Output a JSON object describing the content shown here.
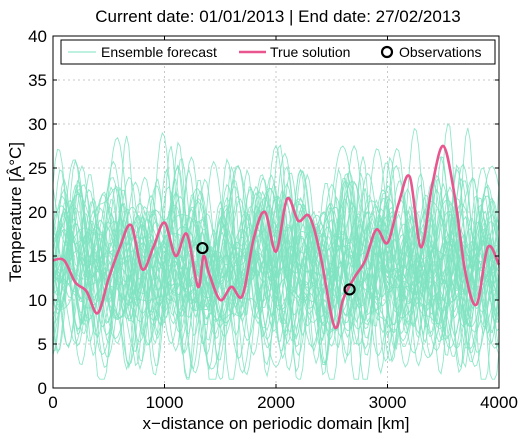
{
  "chart_data": {
    "type": "line",
    "title": "Current date: 01/01/2013 | End date: 27/02/2013",
    "xlabel": "x−distance on periodic domain [km]",
    "ylabel": "Temperature [Â°C]",
    "xlim": [
      0,
      4000
    ],
    "ylim": [
      0,
      40
    ],
    "xticks": [
      0,
      1000,
      2000,
      3000,
      4000
    ],
    "yticks": [
      0,
      5,
      10,
      15,
      20,
      25,
      30,
      35,
      40
    ],
    "grid": true,
    "legend_position": "top",
    "legend": [
      "Ensemble forecast",
      "True solution",
      "Observations"
    ],
    "colors": {
      "ensemble": "#7fe3c1",
      "truth": "#e9568f",
      "observation": "#000000"
    },
    "series": [
      {
        "name": "True solution",
        "x": [
          0,
          100,
          200,
          300,
          400,
          500,
          600,
          700,
          800,
          900,
          1000,
          1100,
          1200,
          1300,
          1350,
          1400,
          1500,
          1600,
          1700,
          1800,
          1900,
          2000,
          2100,
          2200,
          2300,
          2400,
          2500,
          2550,
          2600,
          2700,
          2800,
          2900,
          3000,
          3100,
          3200,
          3300,
          3400,
          3500,
          3600,
          3700,
          3800,
          3900,
          4000
        ],
        "y": [
          14.5,
          14.5,
          12,
          11,
          8.5,
          12.5,
          16,
          18.5,
          13.5,
          16,
          18.8,
          15,
          17.5,
          11.5,
          15,
          13,
          10,
          11.5,
          10.5,
          17,
          20,
          15.5,
          21.5,
          19,
          19.5,
          15,
          8,
          7,
          10,
          12.5,
          14.5,
          18,
          16.5,
          21,
          24,
          16,
          23,
          27.5,
          22,
          13,
          9.5,
          16,
          14
        ]
      },
      {
        "name": "Observations",
        "x": [
          1340,
          2660
        ],
        "y": [
          15.9,
          11.2
        ]
      },
      {
        "name": "Ensemble forecast",
        "members": 50,
        "range": [
          1,
          30
        ]
      }
    ]
  }
}
